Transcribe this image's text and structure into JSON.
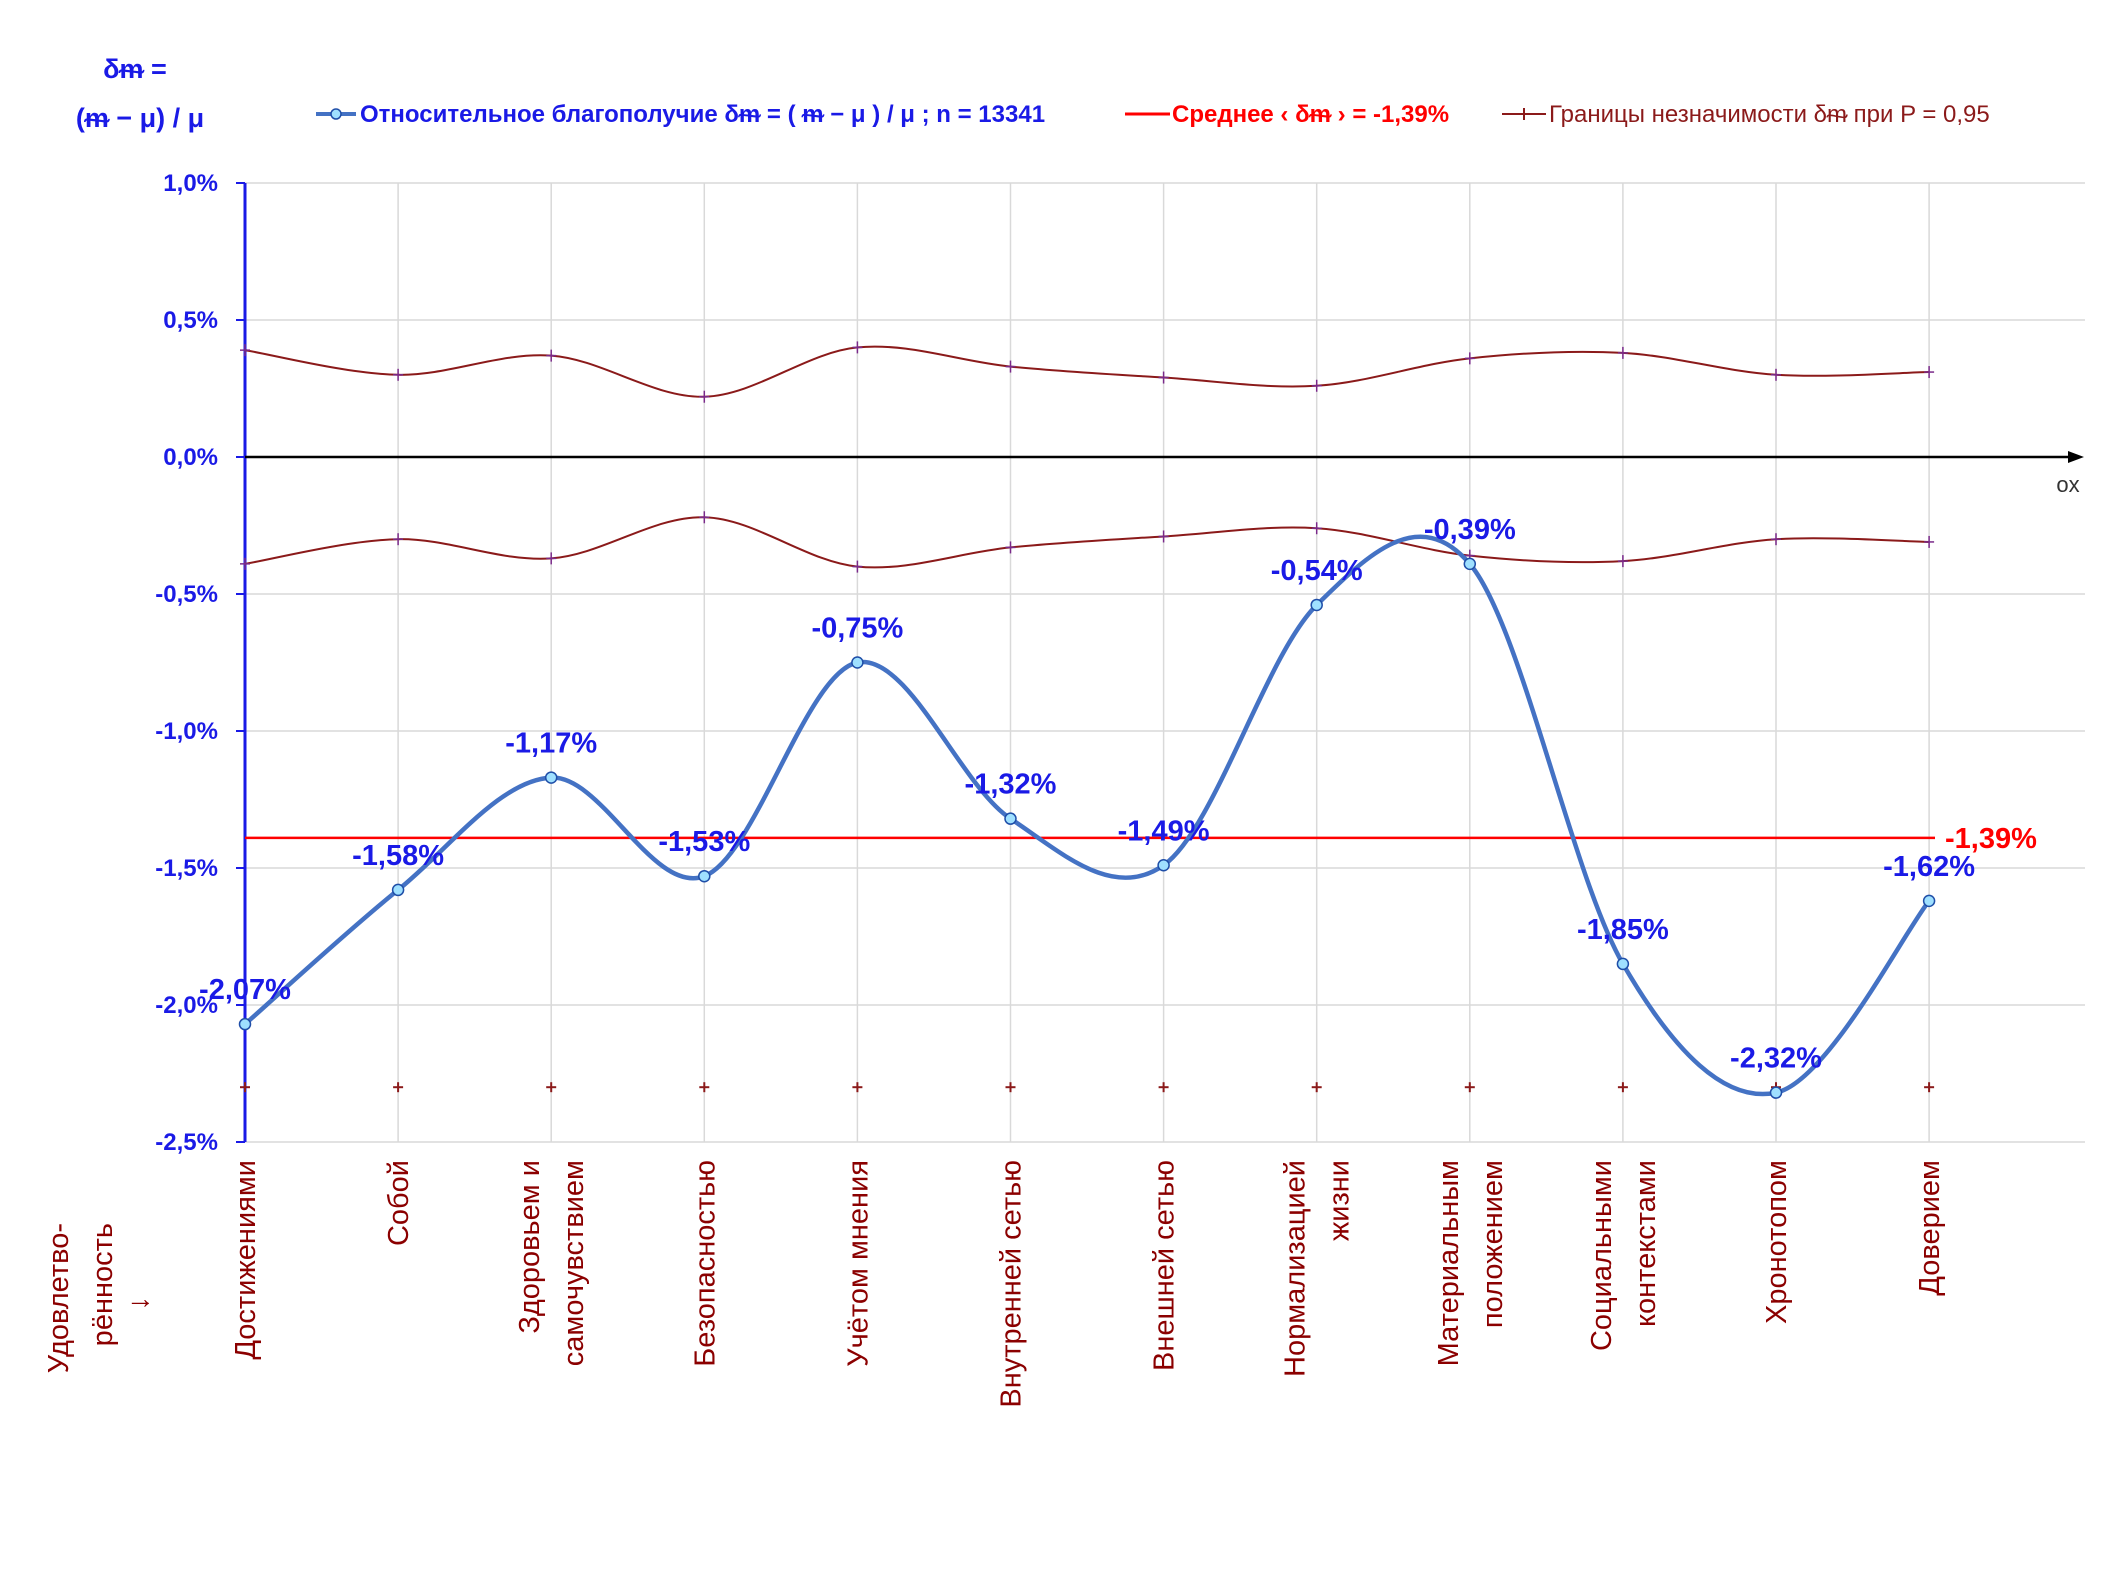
{
  "chart_data": {
    "type": "line",
    "y_title_line1": "δᵯ =",
    "y_title_line2": "(ᵯ − μ) / μ",
    "y_ticks": [
      "1,0%",
      "0,5%",
      "0,0%",
      "-0,5%",
      "-1,0%",
      "-1,5%",
      "-2,0%",
      "-2,5%"
    ],
    "ylim": [
      -2.5,
      1.0
    ],
    "x_axis_name": "ox",
    "x_title": [
      "Удовлетво-",
      "рённость",
      "↓"
    ],
    "categories": [
      [
        "Достижениями"
      ],
      [
        "Собой"
      ],
      [
        "Здоровьем и",
        "самочувствием"
      ],
      [
        "Безопасностью"
      ],
      [
        "Учётом мнения"
      ],
      [
        "Внутренней сетью"
      ],
      [
        "Внешней сетью"
      ],
      [
        "Нормализацией",
        "жизни"
      ],
      [
        "Материальным",
        "положением"
      ],
      [
        "Социальными",
        "контекстами"
      ],
      [
        "Хронотопом"
      ],
      [
        "Доверием"
      ]
    ],
    "series": [
      {
        "name": "Относительное благополучие δᵯ = ( ᵯ − μ ) / μ ; n = 13341",
        "values": [
          -2.07,
          -1.58,
          -1.17,
          -1.53,
          -0.75,
          -1.32,
          -1.49,
          -0.54,
          -0.39,
          -1.85,
          -2.32,
          -1.62
        ],
        "labels": [
          "-2,07%",
          "-1,58%",
          "-1,17%",
          "-1,53%",
          "-0,75%",
          "-1,32%",
          "-1,49%",
          "-0,54%",
          "-0,39%",
          "-1,85%",
          "-2,32%",
          "-1,62%"
        ],
        "color": "#4472c4"
      },
      {
        "name": "Среднее ‹ δᵯ › = -1,39%",
        "value": -1.39,
        "label": "-1,39%",
        "color": "#ff0000"
      },
      {
        "name": "Границы незначимости δᵯ при P = 0,95",
        "upper": [
          0.39,
          0.3,
          0.37,
          0.22,
          0.4,
          0.33,
          0.29,
          0.26,
          0.36,
          0.38,
          0.3,
          0.31
        ],
        "lower": [
          -0.39,
          -0.3,
          -0.37,
          -0.22,
          -0.4,
          -0.33,
          -0.29,
          -0.26,
          -0.36,
          -0.38,
          -0.3,
          -0.31
        ],
        "color": "#8b1a1a"
      }
    ],
    "bottom_markers_value": -2.3,
    "grid": true,
    "legend_position": "top"
  }
}
